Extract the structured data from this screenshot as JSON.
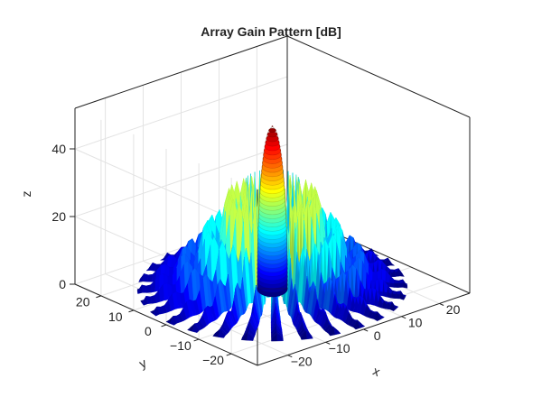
{
  "chart_data": {
    "type": "surface3d",
    "title": "Array Gain Pattern [dB]",
    "xlabel": "x",
    "ylabel": "y",
    "zlabel": "z",
    "xlim": [
      -28,
      28
    ],
    "ylim": [
      -28,
      28
    ],
    "zlim": [
      0,
      52
    ],
    "xticks": [
      -20,
      -10,
      0,
      10,
      20
    ],
    "yticks": [
      -20,
      -10,
      0,
      10,
      20
    ],
    "zticks": [
      0,
      20,
      40
    ],
    "xtick_labels": [
      "−20",
      "−10",
      "0",
      "10",
      "20"
    ],
    "ytick_labels": [
      "−20",
      "−10",
      "0",
      "10",
      "20"
    ],
    "ztick_labels": [
      "0",
      "20",
      "40"
    ],
    "grid": true,
    "colormap": "jet",
    "color_range": [
      0,
      48
    ],
    "peak_gain_db": 48,
    "main_lobe_halfwidth": 4.5,
    "side_lobe_levels_db": [
      38,
      31,
      26,
      22,
      19
    ],
    "n_azimuth_fins": 28,
    "max_radius": 27
  }
}
